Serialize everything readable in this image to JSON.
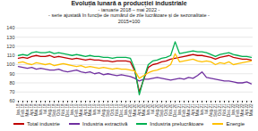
{
  "chart_data": {
    "type": "line",
    "title": "Evoluția lunară a producției industriale",
    "subtitle": [
      "- ianuarie 2018 – mai 2022 -",
      "- serie ajustată în funcție de numărul de zile lucrătoare și de sezonalitate -",
      "2015=100"
    ],
    "categories": [
      "Ian.18",
      "Feb.18",
      "Mar.18",
      "Apr.18",
      "Mai.18",
      "Iun.18",
      "Iul.18",
      "Aug.18",
      "Sep.18",
      "Oct.18",
      "Noi.18",
      "Dec.18",
      "Ian.19",
      "Feb.19",
      "Mar.19",
      "Apr.19",
      "Mai.19",
      "Iun.19",
      "Iul.19",
      "Aug.19",
      "Sep.19",
      "Oct.19",
      "Noi.19",
      "Dec.19",
      "Ian.20",
      "Feb.20",
      "Mar.20",
      "Apr.20",
      "Mai.20",
      "Iun.20",
      "Iul.20",
      "Aug.20",
      "Sep.20",
      "Oct.20",
      "Noi.20",
      "Dec.20",
      "Ian.21",
      "Feb.21",
      "Mar.21",
      "Apr.21",
      "Mai.21",
      "Iun.21",
      "Iul.21",
      "Aug.21",
      "Sep.21",
      "Oct.21",
      "Noi.21",
      "Dec.21",
      "Ian.22",
      "Feb.22",
      "Mar.22",
      "Apr.22",
      "Mai.22"
    ],
    "series": [
      {
        "name": "Total industrie",
        "color": "#c00000",
        "values": [
          107,
          108,
          107,
          109,
          110,
          109,
          109,
          110,
          108,
          109,
          108,
          107,
          106,
          107,
          106,
          105,
          106,
          105,
          105,
          104,
          104,
          103,
          104,
          104,
          104,
          103,
          93,
          70,
          84,
          97,
          100,
          101,
          103,
          104,
          106,
          107,
          108,
          109,
          110,
          111,
          110,
          110,
          109,
          108,
          106,
          108,
          109,
          110,
          108,
          107,
          106,
          106,
          105
        ]
      },
      {
        "name": "Industria extractivă",
        "color": "#7030a0",
        "values": [
          98,
          97,
          96,
          97,
          95,
          96,
          95,
          94,
          94,
          95,
          93,
          92,
          93,
          94,
          92,
          91,
          92,
          90,
          91,
          89,
          90,
          89,
          88,
          89,
          88,
          87,
          85,
          82,
          84,
          84,
          85,
          86,
          85,
          84,
          83,
          84,
          85,
          84,
          86,
          85,
          88,
          92,
          86,
          85,
          84,
          83,
          82,
          82,
          81,
          80,
          80,
          81,
          79
        ]
      },
      {
        "name": "Industria prelucrătoare",
        "color": "#00b050",
        "values": [
          110,
          111,
          110,
          113,
          114,
          113,
          113,
          114,
          112,
          113,
          112,
          111,
          110,
          111,
          110,
          109,
          110,
          109,
          109,
          108,
          108,
          107,
          108,
          108,
          108,
          107,
          95,
          67,
          85,
          100,
          104,
          105,
          107,
          108,
          110,
          125,
          112,
          113,
          114,
          115,
          114,
          114,
          113,
          111,
          109,
          111,
          112,
          113,
          111,
          110,
          109,
          109,
          108
        ]
      },
      {
        "name": "Energie",
        "color": "#ffc000",
        "values": [
          102,
          103,
          101,
          100,
          102,
          101,
          100,
          101,
          99,
          100,
          101,
          100,
          99,
          98,
          99,
          97,
          98,
          97,
          96,
          97,
          96,
          95,
          96,
          95,
          95,
          94,
          93,
          85,
          88,
          91,
          93,
          94,
          96,
          97,
          100,
          112,
          103,
          104,
          105,
          106,
          104,
          103,
          104,
          103,
          100,
          102,
          101,
          103,
          100,
          101,
          102,
          103,
          104
        ]
      }
    ],
    "ylim": [
      60,
      140
    ],
    "yticks": [
      60,
      70,
      80,
      90,
      100,
      110,
      120,
      130,
      140
    ],
    "grid": true,
    "legend": "bottom"
  }
}
